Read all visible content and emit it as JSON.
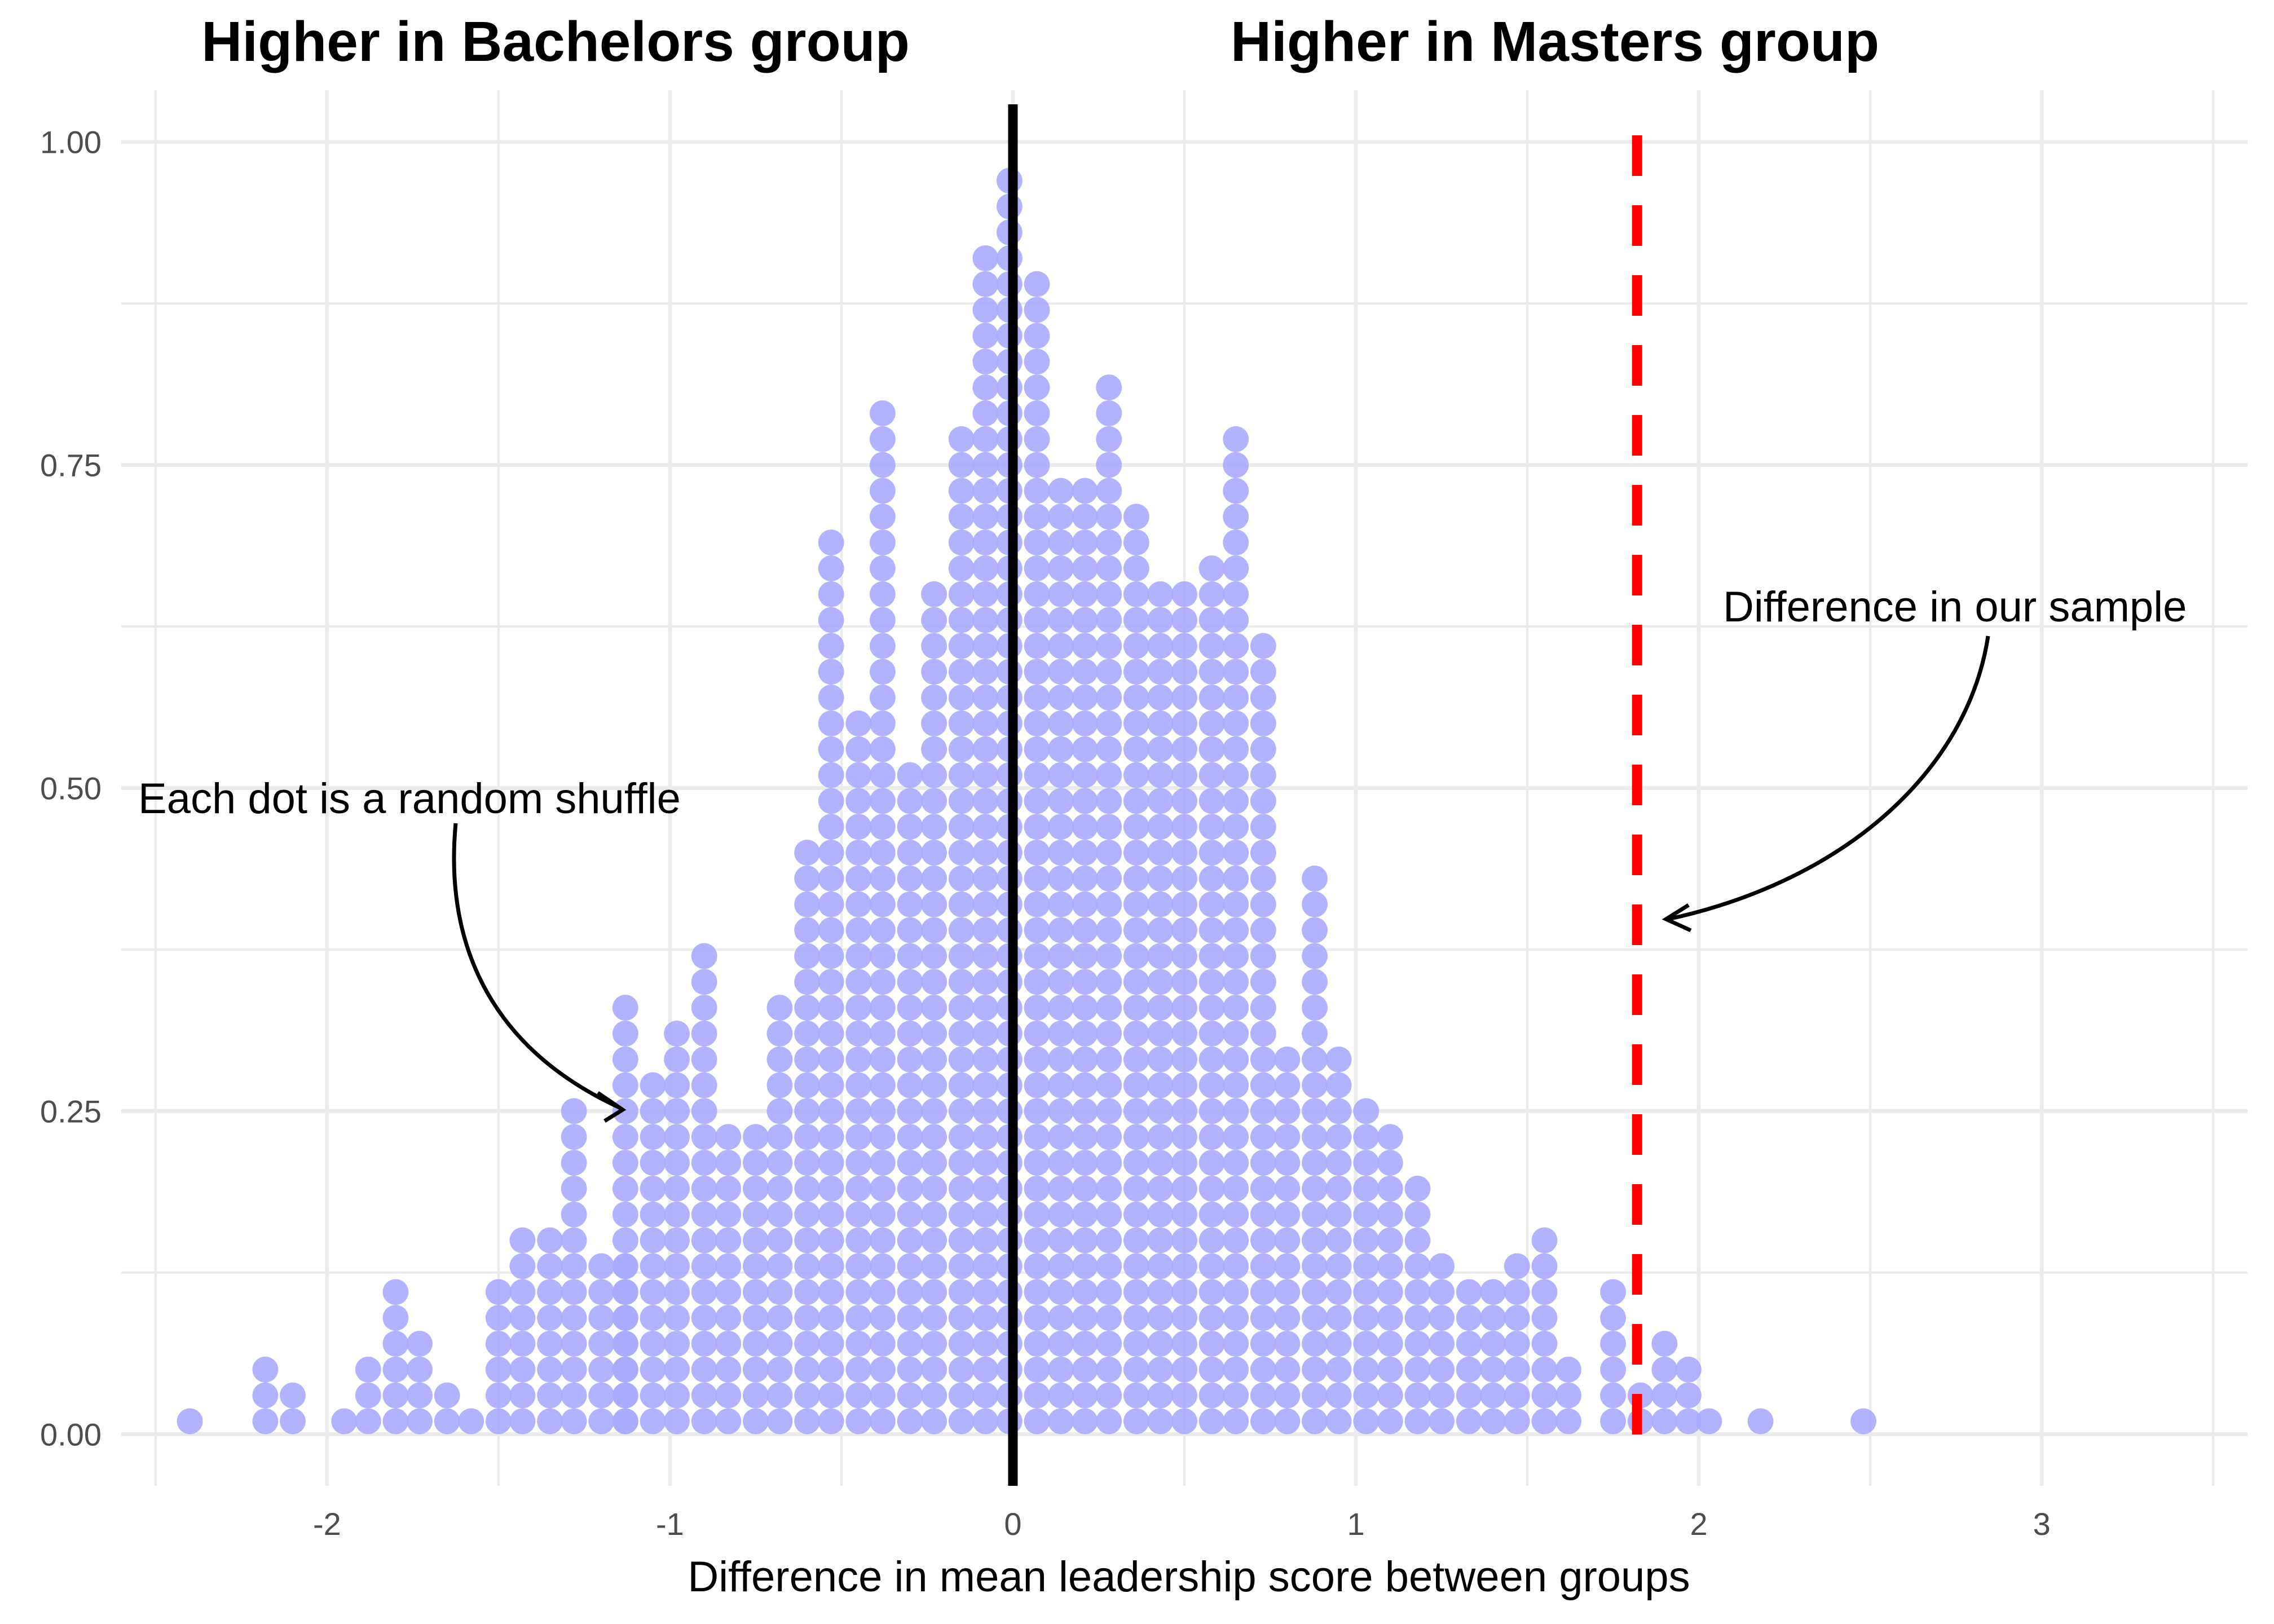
{
  "header": {
    "left_title": "Higher in Bachelors group",
    "right_title": "Higher in Masters group"
  },
  "annotations": {
    "dots": "Each dot is a random shuffle",
    "sample": "Difference in our sample"
  },
  "colors": {
    "dot": "#aaaaff",
    "zero_line": "#000000",
    "observed_line": "#ff0000",
    "grid": "#ebebeb"
  },
  "chart_data": {
    "type": "scatter",
    "subtype": "dotplot",
    "title": "",
    "xlabel": "Difference in mean leadership score between groups",
    "ylabel": "",
    "xlim": [
      -2.6,
      3.6
    ],
    "ylim": [
      -0.04,
      1.04
    ],
    "x_ticks": [
      -2,
      -1,
      0,
      1,
      2,
      3
    ],
    "x_tick_labels": [
      "-2",
      "-1",
      "0",
      "1",
      "2",
      "3"
    ],
    "y_ticks": [
      0,
      0.25,
      0.5,
      0.75,
      1
    ],
    "y_tick_labels": [
      "0.00",
      "0.25",
      "0.50",
      "0.75",
      "1.00"
    ],
    "grid": true,
    "reference_lines": [
      {
        "name": "zero",
        "x": 0,
        "style": "solid"
      },
      {
        "name": "observed difference",
        "x": 1.82,
        "style": "dashed"
      }
    ],
    "dot_stack_step": 0.02,
    "dot_stacks": [
      {
        "x": -2.4,
        "count": 1
      },
      {
        "x": -2.18,
        "count": 3
      },
      {
        "x": -2.1,
        "count": 2
      },
      {
        "x": -1.95,
        "count": 1
      },
      {
        "x": -1.88,
        "count": 3
      },
      {
        "x": -1.8,
        "count": 6
      },
      {
        "x": -1.73,
        "count": 4
      },
      {
        "x": -1.65,
        "count": 2
      },
      {
        "x": -1.58,
        "count": 1
      },
      {
        "x": -1.5,
        "count": 6
      },
      {
        "x": -1.43,
        "count": 8
      },
      {
        "x": -1.35,
        "count": 8
      },
      {
        "x": -1.28,
        "count": 13
      },
      {
        "x": -1.2,
        "count": 7
      },
      {
        "x": -1.13,
        "count": 7
      },
      {
        "x": -1.13,
        "count": 17
      },
      {
        "x": -1.05,
        "count": 14
      },
      {
        "x": -0.98,
        "count": 16
      },
      {
        "x": -0.9,
        "count": 19
      },
      {
        "x": -0.83,
        "count": 12
      },
      {
        "x": -0.75,
        "count": 12
      },
      {
        "x": -0.68,
        "count": 17
      },
      {
        "x": -0.6,
        "count": 23
      },
      {
        "x": -0.53,
        "count": 35
      },
      {
        "x": -0.45,
        "count": 28
      },
      {
        "x": -0.38,
        "count": 40
      },
      {
        "x": -0.3,
        "count": 26
      },
      {
        "x": -0.23,
        "count": 33
      },
      {
        "x": -0.15,
        "count": 39
      },
      {
        "x": -0.08,
        "count": 46
      },
      {
        "x": -0.01,
        "count": 49
      },
      {
        "x": 0.07,
        "count": 45
      },
      {
        "x": 0.14,
        "count": 37
      },
      {
        "x": 0.21,
        "count": 37
      },
      {
        "x": 0.28,
        "count": 41
      },
      {
        "x": 0.36,
        "count": 36
      },
      {
        "x": 0.43,
        "count": 33
      },
      {
        "x": 0.5,
        "count": 33
      },
      {
        "x": 0.58,
        "count": 34
      },
      {
        "x": 0.65,
        "count": 39
      },
      {
        "x": 0.73,
        "count": 31
      },
      {
        "x": 0.8,
        "count": 15
      },
      {
        "x": 0.88,
        "count": 22
      },
      {
        "x": 0.95,
        "count": 15
      },
      {
        "x": 1.03,
        "count": 13
      },
      {
        "x": 1.1,
        "count": 12
      },
      {
        "x": 1.18,
        "count": 10
      },
      {
        "x": 1.25,
        "count": 7
      },
      {
        "x": 1.33,
        "count": 6
      },
      {
        "x": 1.4,
        "count": 6
      },
      {
        "x": 1.47,
        "count": 7
      },
      {
        "x": 1.55,
        "count": 8
      },
      {
        "x": 1.62,
        "count": 3
      },
      {
        "x": 1.75,
        "count": 6
      },
      {
        "x": 1.83,
        "count": 2
      },
      {
        "x": 1.9,
        "count": 4
      },
      {
        "x": 1.97,
        "count": 3
      },
      {
        "x": 2.03,
        "count": 1
      },
      {
        "x": 2.18,
        "count": 1
      },
      {
        "x": 2.48,
        "count": 1
      }
    ]
  }
}
